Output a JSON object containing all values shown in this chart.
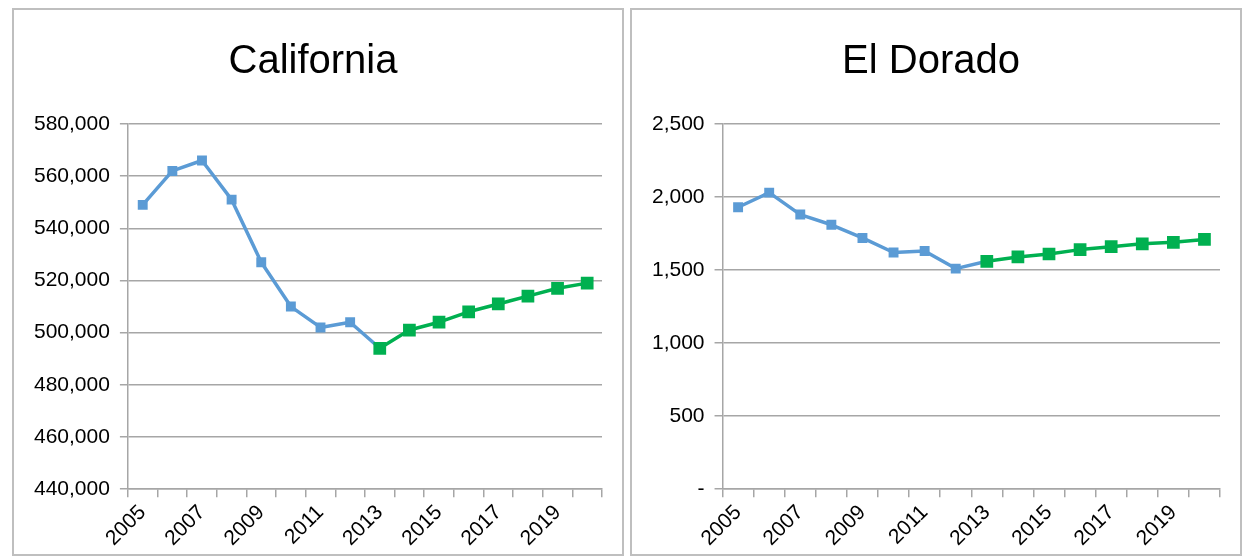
{
  "chart_data": [
    {
      "type": "line",
      "title": "California",
      "categories": [
        "2005",
        null,
        "2007",
        null,
        "2009",
        null,
        "2011",
        null,
        "2013",
        null,
        "2015",
        null,
        "2017",
        null,
        "2019",
        null
      ],
      "series": [
        {
          "color": "#00b050",
          "values": [
            null,
            null,
            null,
            null,
            null,
            null,
            null,
            null,
            494000,
            501000,
            504000,
            508000,
            511000,
            514000,
            517000,
            519000
          ]
        },
        {
          "color": "#5b9bd5",
          "values": [
            549000,
            562000,
            566000,
            551000,
            527000,
            510000,
            502000,
            504000,
            494000,
            null,
            null,
            null,
            null,
            null,
            null,
            null
          ]
        }
      ],
      "ylim": [
        440000,
        580000
      ],
      "yticks": [
        {
          "value": 440000,
          "label": "440,000"
        },
        {
          "value": 460000,
          "label": "460,000"
        },
        {
          "value": 480000,
          "label": "480,000"
        },
        {
          "value": 500000,
          "label": "500,000"
        },
        {
          "value": 520000,
          "label": "520,000"
        },
        {
          "value": 540000,
          "label": "540,000"
        },
        {
          "value": 560000,
          "label": "560,000"
        },
        {
          "value": 580000,
          "label": "580,000"
        }
      ],
      "grid": "y",
      "marker": "square"
    },
    {
      "type": "line",
      "title": "El Dorado",
      "categories": [
        "2005",
        null,
        "2007",
        null,
        "2009",
        null,
        "2011",
        null,
        "2013",
        null,
        "2015",
        null,
        "2017",
        null,
        "2019",
        null
      ],
      "series": [
        {
          "color": "#00b050",
          "values": [
            null,
            null,
            null,
            null,
            null,
            null,
            null,
            null,
            1560,
            1590,
            1610,
            1640,
            1660,
            1680,
            1690,
            1710
          ]
        },
        {
          "color": "#5b9bd5",
          "values": [
            1930,
            2030,
            1880,
            1810,
            1720,
            1620,
            1630,
            1510,
            1560,
            null,
            null,
            null,
            null,
            null,
            null,
            null
          ]
        }
      ],
      "ylim": [
        0,
        2500
      ],
      "yticks": [
        {
          "value": 0,
          "label": "-"
        },
        500,
        {
          "value": 1000,
          "label": "1,000"
        },
        {
          "value": 1500,
          "label": "1,500"
        },
        {
          "value": 2000,
          "label": "2,000"
        },
        {
          "value": 2500,
          "label": "2,500"
        }
      ],
      "grid": "y",
      "marker": "square"
    }
  ]
}
